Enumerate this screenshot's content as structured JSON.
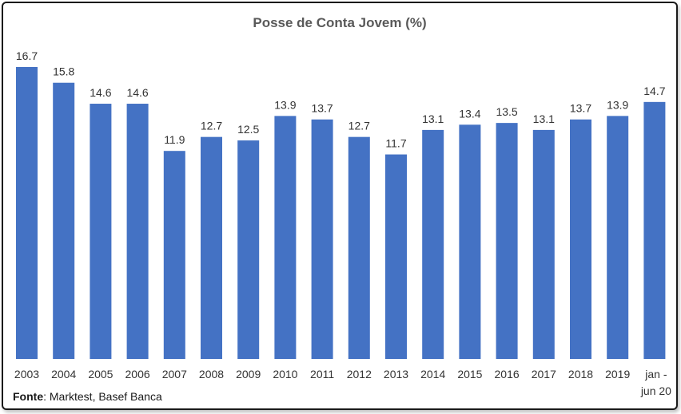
{
  "chart_data": {
    "type": "bar",
    "title": "Posse de Conta Jovem (%)",
    "categories": [
      "2003",
      "2004",
      "2005",
      "2006",
      "2007",
      "2008",
      "2009",
      "2010",
      "2011",
      "2012",
      "2013",
      "2014",
      "2015",
      "2016",
      "2017",
      "2018",
      "2019",
      "jan - jun 20"
    ],
    "values": [
      16.7,
      15.8,
      14.6,
      14.6,
      11.9,
      12.7,
      12.5,
      13.9,
      13.7,
      12.7,
      11.7,
      13.1,
      13.4,
      13.5,
      13.1,
      13.7,
      13.9,
      14.7
    ],
    "ylim": [
      0,
      16.7
    ],
    "grid": false,
    "legend": "none",
    "colors": {
      "bar": "#4472C4",
      "label": "#333333",
      "title": "#595959"
    }
  },
  "source": {
    "label": "Fonte",
    "text": "Marktest, Basef Banca"
  }
}
